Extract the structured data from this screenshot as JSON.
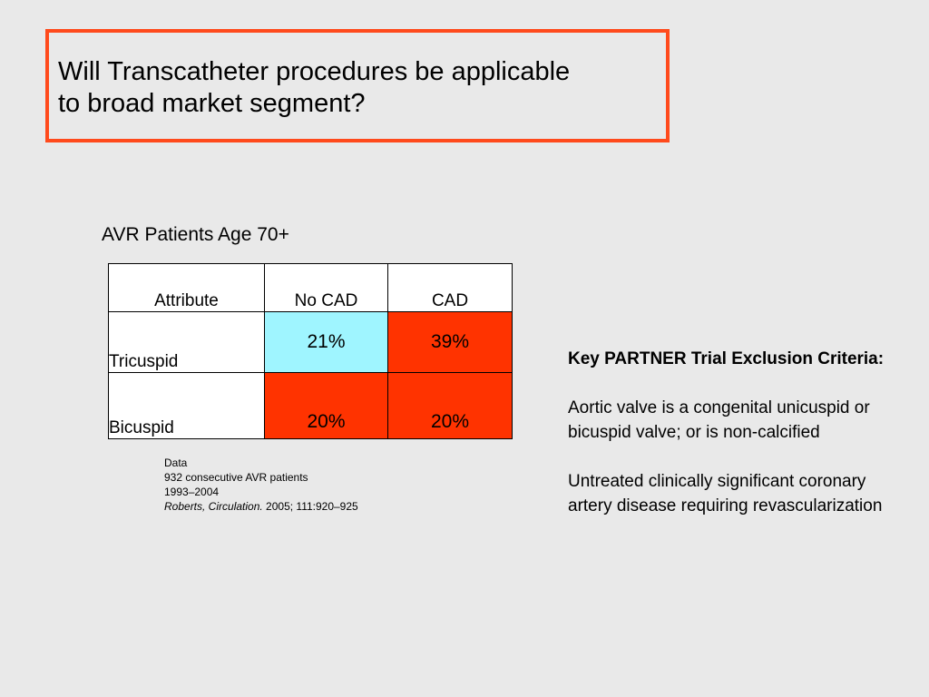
{
  "colors": {
    "border_accent": "#ff4a1c",
    "background": "#e9e9e9",
    "cell_cyan": "#9ff5ff",
    "cell_red": "#ff3300"
  },
  "title": "Will Transcatheter procedures be applicable\nto broad market segment?",
  "table": {
    "caption": "AVR Patients Age 70+",
    "headers": [
      "Attribute",
      "No CAD",
      "CAD"
    ],
    "rows": [
      {
        "label": "Tricuspid",
        "no_cad": "21%",
        "cad": "39%"
      },
      {
        "label": "Bicuspid",
        "no_cad": "20%",
        "cad": "20%"
      }
    ]
  },
  "notes": {
    "line1": "Data",
    "line2": "932 consecutive AVR patients",
    "line3": "1993–2004",
    "citation_italic": "Roberts, Circulation.",
    "citation_rest": " 2005; 111:920–925"
  },
  "criteria": {
    "heading": "Key PARTNER Trial Exclusion Criteria:",
    "items": [
      "Aortic valve is a congenital unicuspid or bicuspid valve; or is non-calcified",
      "Untreated clinically significant coronary artery disease requiring revascularization"
    ]
  }
}
